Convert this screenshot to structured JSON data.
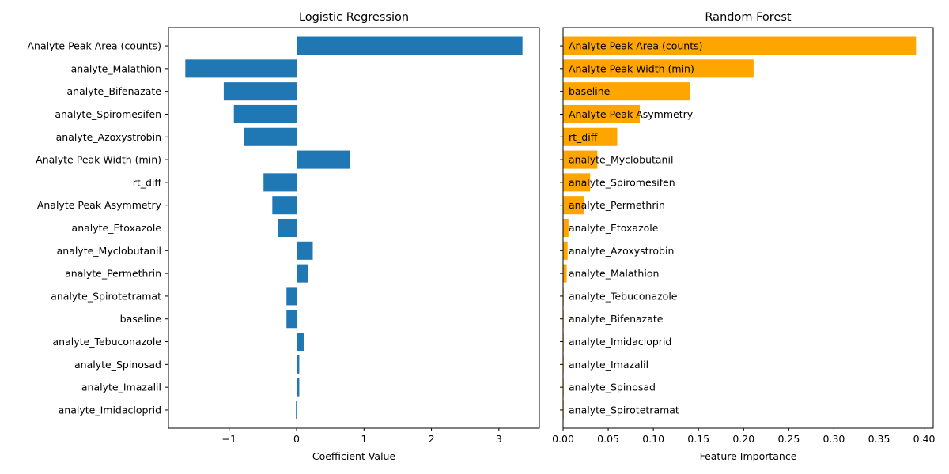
{
  "chart_data": [
    {
      "type": "bar",
      "orientation": "horizontal",
      "title": "Logistic Regression",
      "xlabel": "Coefficient Value",
      "ylabel": "",
      "xlim": [
        -1.9,
        3.6
      ],
      "xticks": [
        -1,
        0,
        1,
        2,
        3
      ],
      "xtick_labels": [
        "−1",
        "0",
        "1",
        "2",
        "3"
      ],
      "grid": false,
      "color": "#1f77b4",
      "category_labels_position": "left-axis",
      "categories": [
        "Analyte Peak Area (counts)",
        "analyte_Malathion",
        "analyte_Bifenazate",
        "analyte_Spiromesifen",
        "analyte_Azoxystrobin",
        "Analyte Peak Width (min)",
        "rt_diff",
        "Analyte Peak Asymmetry",
        "analyte_Etoxazole",
        "analyte_Myclobutanil",
        "analyte_Permethrin",
        "analyte_Spirotetramat",
        "baseline",
        "analyte_Tebuconazole",
        "analyte_Spinosad",
        "analyte_Imazalil",
        "analyte_Imidacloprid"
      ],
      "values": [
        3.35,
        -1.65,
        -1.08,
        -0.93,
        -0.78,
        0.79,
        -0.49,
        -0.36,
        -0.28,
        0.24,
        0.17,
        -0.15,
        -0.15,
        0.11,
        0.04,
        0.04,
        -0.01
      ]
    },
    {
      "type": "bar",
      "orientation": "horizontal",
      "title": "Random Forest",
      "xlabel": "Feature Importance",
      "ylabel": "",
      "xlim": [
        0,
        0.41
      ],
      "xticks": [
        0,
        0.05,
        0.1,
        0.15,
        0.2,
        0.25,
        0.3,
        0.35,
        0.4
      ],
      "xtick_labels": [
        "0.00",
        "0.05",
        "0.10",
        "0.15",
        "0.20",
        "0.25",
        "0.30",
        "0.35",
        "0.40"
      ],
      "grid": false,
      "color": "#ffa500",
      "category_labels_position": "inside-left",
      "categories": [
        "Analyte Peak Area (counts)",
        "Analyte Peak Width (min)",
        "baseline",
        "Analyte Peak Asymmetry",
        "rt_diff",
        "analyte_Myclobutanil",
        "analyte_Spiromesifen",
        "analyte_Permethrin",
        "analyte_Etoxazole",
        "analyte_Azoxystrobin",
        "analyte_Malathion",
        "analyte_Tebuconazole",
        "analyte_Bifenazate",
        "analyte_Imidacloprid",
        "analyte_Imazalil",
        "analyte_Spinosad",
        "analyte_Spirotetramat"
      ],
      "values": [
        0.391,
        0.211,
        0.141,
        0.085,
        0.06,
        0.038,
        0.03,
        0.023,
        0.006,
        0.005,
        0.004,
        0.0005,
        0.0004,
        0.0003,
        0.0002,
        0.0002,
        0.0001
      ]
    }
  ]
}
